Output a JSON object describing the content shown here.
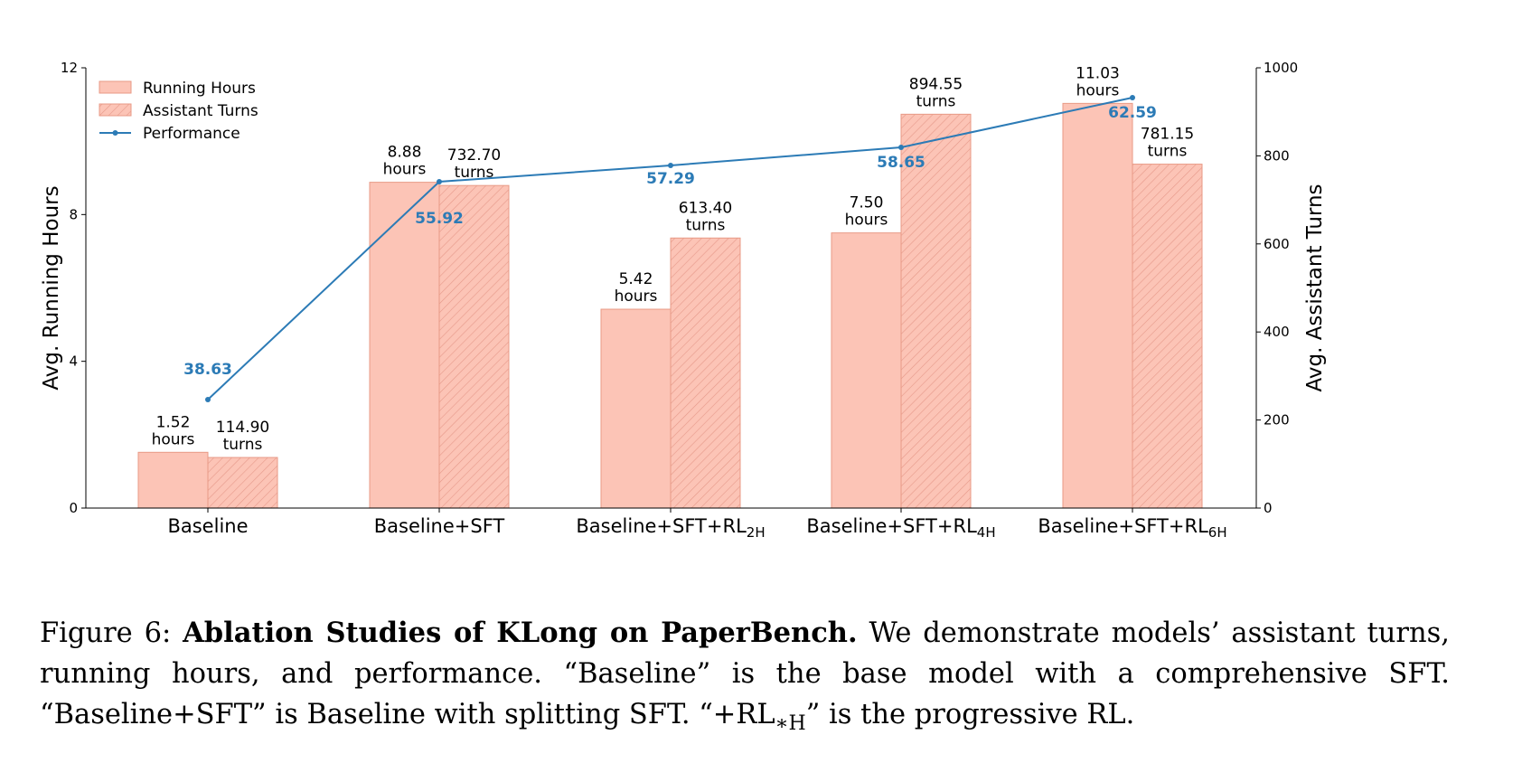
{
  "chart_data": {
    "type": "bar",
    "categories": [
      "Baseline",
      "Baseline+SFT",
      "Baseline+SFT+RL2H",
      "Baseline+SFT+RL4H",
      "Baseline+SFT+RL6H"
    ],
    "category_labels": [
      {
        "main": "Baseline",
        "sub": ""
      },
      {
        "main": "Baseline+SFT+",
        "sub": "",
        "plain": "Baseline+SFT"
      },
      {
        "main": "Baseline+SFT+RL",
        "sub": "2H"
      },
      {
        "main": "Baseline+SFT+RL",
        "sub": "4H"
      },
      {
        "main": "Baseline+SFT+RL",
        "sub": "6H"
      }
    ],
    "series": [
      {
        "name": "Running Hours",
        "axis": "left",
        "kind": "bar",
        "values": [
          1.52,
          8.88,
          5.42,
          7.5,
          11.03
        ],
        "labels": [
          "1.52\nhours",
          "8.88\nhours",
          "5.42\nhours",
          "7.50\nhours",
          "11.03\nhours"
        ]
      },
      {
        "name": "Assistant Turns",
        "axis": "right",
        "kind": "bar-hatched",
        "values": [
          114.9,
          732.7,
          613.4,
          894.55,
          781.15
        ],
        "labels": [
          "114.90\nturns",
          "732.70\nturns",
          "613.40\nturns",
          "894.55\nturns",
          "781.15\nturns"
        ]
      },
      {
        "name": "Performance",
        "axis": "right-scaled",
        "kind": "line",
        "values": [
          38.63,
          55.92,
          57.29,
          58.65,
          62.59
        ],
        "labels": [
          "38.63",
          "55.92",
          "57.29",
          "58.65",
          "62.59"
        ]
      }
    ],
    "ylabel": "Avg. Running Hours",
    "ylabel_right": "Avg. Assistant Turns",
    "ylim": [
      0,
      12
    ],
    "ylim_right": [
      0,
      1000
    ],
    "yticks": [
      "0",
      "4",
      "8",
      "12"
    ],
    "yticks_right": [
      "0",
      "200",
      "400",
      "600",
      "800",
      "1000"
    ],
    "legend": [
      "Running Hours",
      "Assistant Turns",
      "Performance"
    ],
    "legend_position": "top-left",
    "grid": false
  },
  "colors": {
    "bar_fill": "#fcc4b6",
    "bar_edge": "#e89a86",
    "hatch": "#e6998a",
    "line": "#2c7bb6",
    "axis": "#000000"
  },
  "caption": {
    "prefix": "Figure 6: ",
    "bold": "Ablation Studies of KLong on PaperBench.",
    "line1_rest": " We demonstrate models’ assistant turns,",
    "line2": "running hours, and performance.  “Baseline” is the base model with a comprehensive SFT.",
    "line3_a": "“Baseline+SFT” is Baseline with splitting SFT. “+RL",
    "line3_sub": "∗H",
    "line3_b": "” is the progressive RL."
  }
}
